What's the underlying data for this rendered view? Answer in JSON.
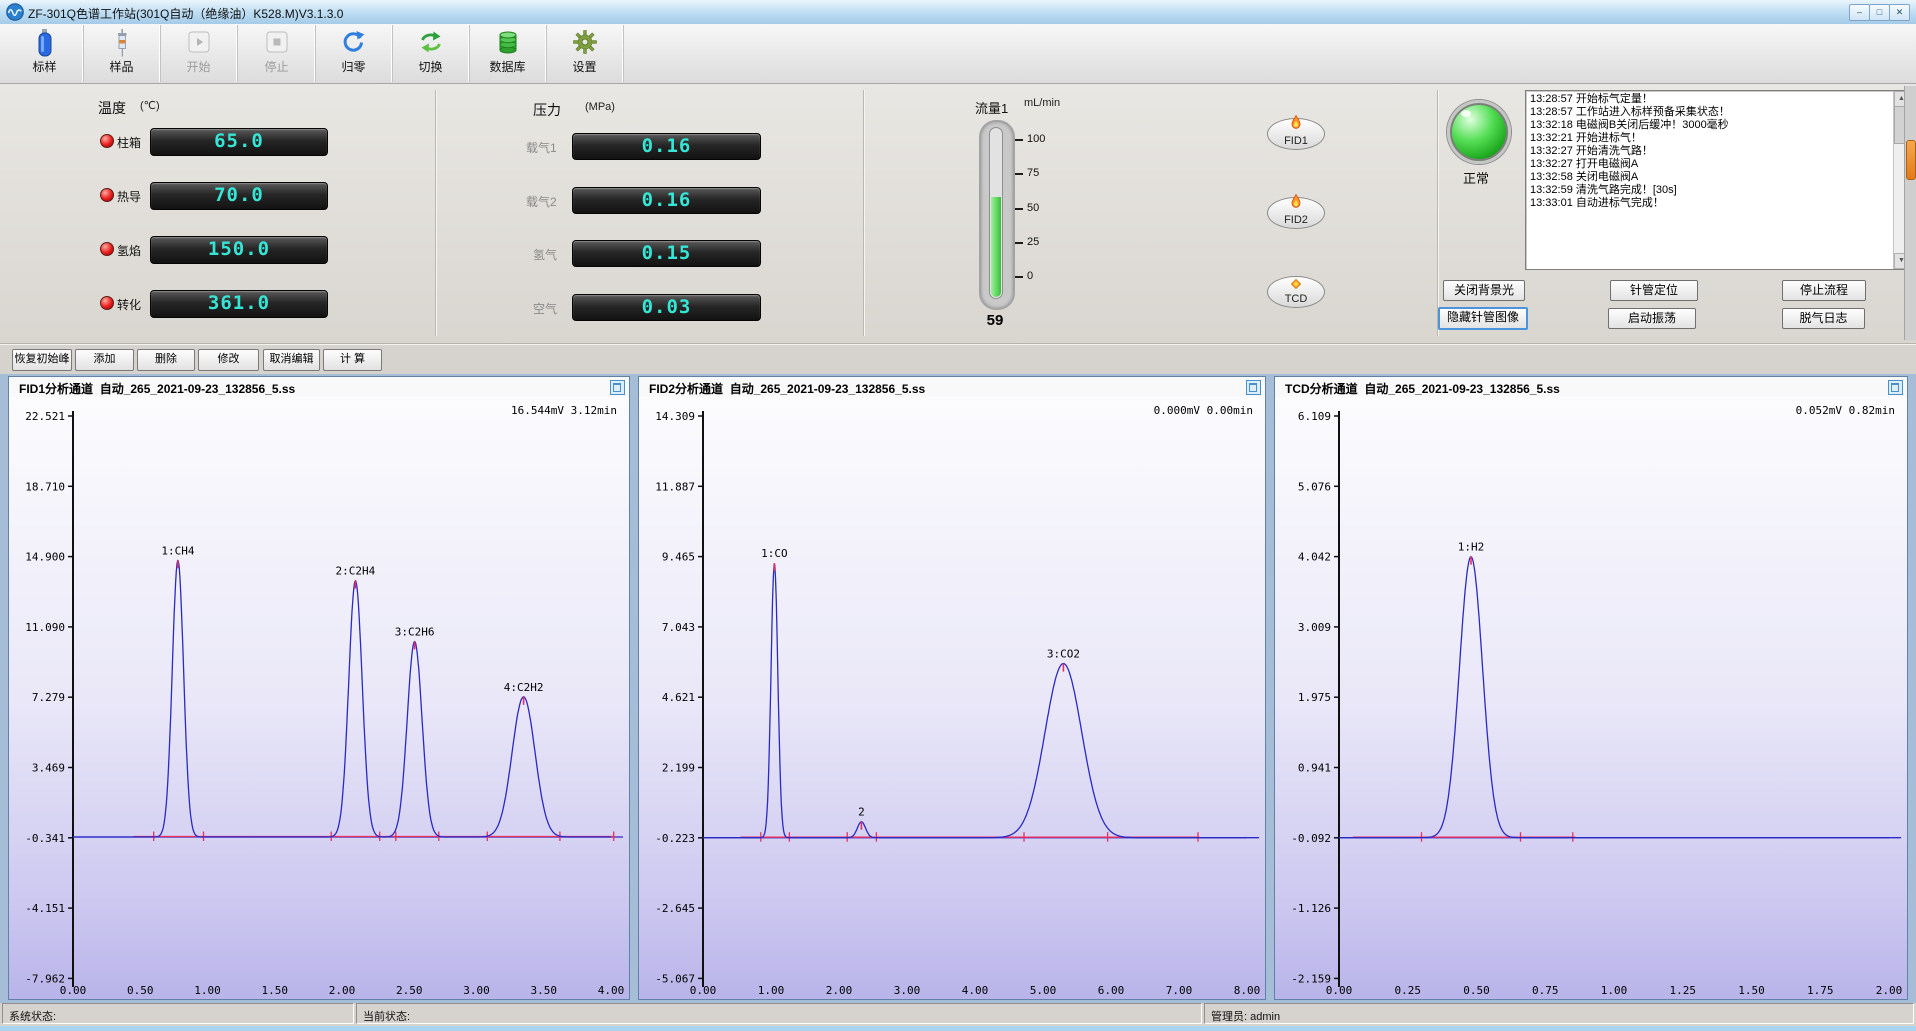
{
  "window": {
    "title": "ZF-301Q色谱工作站(301Q自动（绝缘油）K528.M)V3.1.3.0",
    "controls": [
      "–",
      "□",
      "✕"
    ]
  },
  "toolbar": {
    "items": [
      {
        "label": "标样",
        "icon": "gas-cylinder",
        "disabled": false
      },
      {
        "label": "样品",
        "icon": "syringe",
        "disabled": false
      },
      {
        "label": "开始",
        "icon": "play",
        "disabled": true
      },
      {
        "label": "停止",
        "icon": "stop",
        "disabled": true
      },
      {
        "label": "归零",
        "icon": "reset-arrow",
        "disabled": false
      },
      {
        "label": "切换",
        "icon": "swap-arrows",
        "disabled": false
      },
      {
        "label": "数据库",
        "icon": "database",
        "disabled": false
      },
      {
        "label": "设置",
        "icon": "gear",
        "disabled": false
      }
    ]
  },
  "temperature": {
    "title": "温度",
    "unit": "(℃)",
    "rows": [
      {
        "label": "柱箱",
        "value": "65.0"
      },
      {
        "label": "热导",
        "value": "70.0"
      },
      {
        "label": "氢焰",
        "value": "150.0"
      },
      {
        "label": "转化",
        "value": "361.0"
      }
    ]
  },
  "pressure": {
    "title": "压力",
    "unit": "(MPa)",
    "rows": [
      {
        "label": "载气1",
        "value": "0.16"
      },
      {
        "label": "载气2",
        "value": "0.16"
      },
      {
        "label": "氢气",
        "value": "0.15"
      },
      {
        "label": "空气",
        "value": "0.03"
      }
    ]
  },
  "flow": {
    "label": "流量1",
    "unit": "mL/min",
    "value": "59",
    "scale_ticks": [
      "100",
      "75",
      "50",
      "25",
      "0"
    ],
    "fill_color": "#5fd85f"
  },
  "detectors": [
    {
      "label": "FID1",
      "icon": "flame"
    },
    {
      "label": "FID2",
      "icon": "flame"
    },
    {
      "label": "TCD",
      "icon": "diamond"
    }
  ],
  "status_lamp": {
    "label": "正常",
    "color": "#2ec42e"
  },
  "log": {
    "entries": [
      "13:28:57 开始标气定量！",
      "13:28:57 工作站进入标样预备采集状态！",
      "13:32:18 电磁阀B关闭后缓冲！3000毫秒",
      "13:32:21 开始进标气！",
      "13:32:27 开始清洗气路！",
      "13:32:27 打开电磁阀A",
      "13:32:58 关闭电磁阀A",
      "13:32:59 清洗气路完成！[30s]",
      "13:33:01 自动进标气完成！"
    ]
  },
  "right_panel": {
    "buttons": [
      {
        "label": "关闭背景光",
        "focused": false
      },
      {
        "label": "针管定位",
        "focused": false
      },
      {
        "label": "停止流程",
        "focused": false
      },
      {
        "label": "隐藏针管图像",
        "focused": true
      },
      {
        "label": "启动振荡",
        "focused": false
      },
      {
        "label": "脱气日志",
        "focused": false
      }
    ]
  },
  "edit_buttons": [
    "恢复初始峰",
    "添加",
    "删除",
    "修改",
    "取消编辑",
    "计 算"
  ],
  "statusbar": {
    "system": "系统状态:",
    "current": "当前状态:",
    "admin": "管理员: admin"
  },
  "chart_data": [
    {
      "type": "line",
      "title": "FID1分析通道",
      "file": "自动_265_2021-09-23_132856_5.ss",
      "annotation": "16.544mV 3.12min",
      "xlabel": "min",
      "ylabel": "mV",
      "xlim": [
        0,
        4
      ],
      "xtick_labels": [
        "0.00",
        "0.50",
        "1.00",
        "1.50",
        "2.00",
        "2.50",
        "3.00",
        "3.50",
        "4.00"
      ],
      "ytick_labels": [
        "22.521",
        "18.710",
        "14.900",
        "11.090",
        "7.279",
        "3.469",
        "-0.341",
        "-4.151",
        "-7.962"
      ],
      "baseline": -0.3,
      "curve_color": "#2a2ac6",
      "marker_color": "#ee2d5c",
      "peaks": [
        {
          "label": "1:CH4",
          "t": 0.78,
          "height": 15.0,
          "sigma": 0.042
        },
        {
          "label": "2:C2H4",
          "t": 2.1,
          "height": 13.9,
          "sigma": 0.05
        },
        {
          "label": "3:C2H6",
          "t": 2.54,
          "height": 10.6,
          "sigma": 0.055
        },
        {
          "label": "4:C2H2",
          "t": 3.35,
          "height": 7.6,
          "sigma": 0.085
        }
      ],
      "red_line": {
        "from": 0.45,
        "to": 4.03,
        "ticks": [
          0.6,
          0.97,
          1.92,
          2.28,
          2.4,
          2.72,
          3.08,
          3.62,
          4.02
        ]
      }
    },
    {
      "type": "line",
      "title": "FID2分析通道",
      "file": "自动_265_2021-09-23_132856_5.ss",
      "annotation": "0.000mV 0.00min",
      "xlabel": "min",
      "ylabel": "mV",
      "xlim": [
        0,
        8
      ],
      "xtick_labels": [
        "0.00",
        "1.00",
        "2.00",
        "3.00",
        "4.00",
        "5.00",
        "6.00",
        "7.00",
        "8.00"
      ],
      "ytick_labels": [
        "14.309",
        "11.887",
        "9.465",
        "7.043",
        "4.621",
        "2.199",
        "-0.223",
        "-2.645",
        "-5.067"
      ],
      "baseline": -0.22,
      "curve_color": "#2a2ac6",
      "marker_color": "#ee2d5c",
      "peaks": [
        {
          "label": "1:CO",
          "t": 1.05,
          "height": 9.46,
          "sigma": 0.05
        },
        {
          "label": "2",
          "t": 2.33,
          "height": 0.55,
          "sigma": 0.06
        },
        {
          "label": "3:CO2",
          "t": 5.3,
          "height": 6.0,
          "sigma": 0.27
        }
      ],
      "red_line": {
        "from": 0.55,
        "to": 7.3,
        "ticks": [
          0.85,
          1.27,
          2.12,
          2.55,
          4.72,
          5.95,
          7.28
        ]
      }
    },
    {
      "type": "line",
      "title": "TCD分析通道",
      "file": "自动_265_2021-09-23_132856_5.ss",
      "annotation": "0.052mV 0.82min",
      "xlabel": "min",
      "ylabel": "mV",
      "xlim": [
        0,
        2
      ],
      "xtick_labels": [
        "0.00",
        "0.25",
        "0.50",
        "0.75",
        "1.00",
        "1.25",
        "1.50",
        "1.75",
        "2.00"
      ],
      "ytick_labels": [
        "6.109",
        "5.076",
        "4.042",
        "3.009",
        "1.975",
        "0.941",
        "-0.092",
        "-1.126",
        "-2.159"
      ],
      "baseline": -0.09,
      "curve_color": "#2a2ac6",
      "marker_color": "#ee2d5c",
      "peaks": [
        {
          "label": "1:H2",
          "t": 0.48,
          "height": 4.13,
          "sigma": 0.042
        }
      ],
      "red_line": {
        "from": 0.05,
        "to": 0.86,
        "ticks": [
          0.3,
          0.66,
          0.85
        ]
      }
    }
  ]
}
